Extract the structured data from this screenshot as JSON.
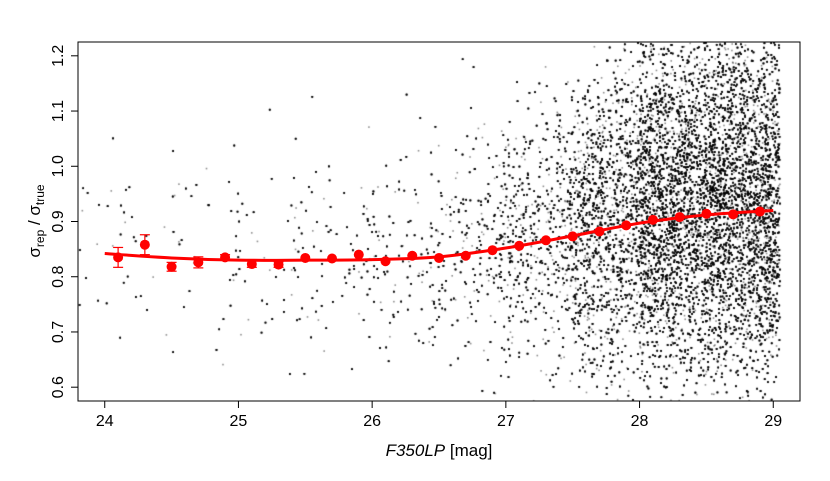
{
  "chart_data": {
    "type": "scatter",
    "title": "",
    "xlabel": {
      "var": "F350LP",
      "unit": "[mag]"
    },
    "ylabel": {
      "sym1": "σ",
      "sub1": "rep",
      "sep": " / ",
      "sym2": "σ",
      "sub2": "true"
    },
    "xlim": [
      23.8,
      29.2
    ],
    "ylim": [
      0.575,
      1.225
    ],
    "xticks": [
      "24",
      "25",
      "26",
      "27",
      "28",
      "29"
    ],
    "yticks": [
      "0.6",
      "0.7",
      "0.8",
      "0.9",
      "1.0",
      "1.1",
      "1.2"
    ],
    "grid": false,
    "legend": "none",
    "colors": {
      "points": "#000000",
      "binned": "#ff0000",
      "fit": "#ff0000"
    },
    "binned_means": {
      "x": [
        24.1,
        24.3,
        24.5,
        24.7,
        24.9,
        25.1,
        25.3,
        25.5,
        25.7,
        25.9,
        26.1,
        26.3,
        26.5,
        26.7,
        26.9,
        27.1,
        27.3,
        27.5,
        27.7,
        27.9,
        28.1,
        28.3,
        28.5,
        28.7,
        28.9
      ],
      "y": [
        0.835,
        0.858,
        0.818,
        0.826,
        0.835,
        0.823,
        0.822,
        0.834,
        0.833,
        0.84,
        0.828,
        0.838,
        0.834,
        0.838,
        0.848,
        0.856,
        0.866,
        0.873,
        0.882,
        0.893,
        0.903,
        0.908,
        0.914,
        0.913,
        0.918
      ],
      "err": [
        0.018,
        0.018,
        0.008,
        0.01,
        0.005,
        0.006,
        0.005,
        0.004,
        0.003,
        0.003,
        0.003,
        0.002,
        0.002,
        0.002,
        0.002,
        0.002,
        0.001,
        0.001,
        0.001,
        0.001,
        0.001,
        0.001,
        0.001,
        0.001,
        0.001
      ]
    },
    "fit_curve": {
      "x": [
        24.0,
        24.5,
        25.0,
        25.5,
        26.0,
        26.5,
        27.0,
        27.5,
        28.0,
        28.5,
        29.0
      ],
      "y": [
        0.842,
        0.834,
        0.83,
        0.83,
        0.831,
        0.836,
        0.852,
        0.874,
        0.897,
        0.912,
        0.92
      ]
    },
    "scatter_model": {
      "x_min": 23.8,
      "x_max": 29.05,
      "count": 42000,
      "y_mean": [
        0.84,
        0.84,
        0.84,
        0.84,
        0.84,
        0.85,
        0.87,
        0.89,
        0.92,
        0.93,
        0.94
      ],
      "y_spread": [
        0.1,
        0.1,
        0.1,
        0.1,
        0.1,
        0.1,
        0.11,
        0.13,
        0.16,
        0.17,
        0.16
      ],
      "density_weight": [
        1,
        1,
        1,
        1.5,
        2.5,
        4,
        10,
        25,
        60,
        100,
        80
      ]
    }
  }
}
